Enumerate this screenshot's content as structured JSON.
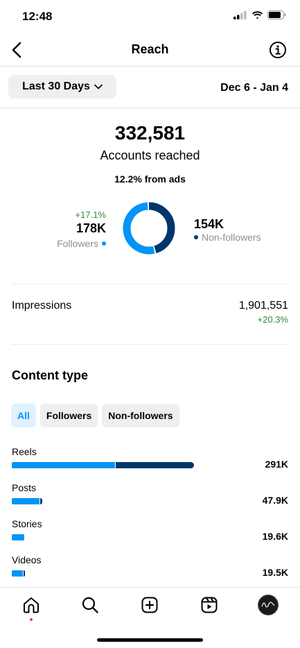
{
  "status_bar": {
    "time": "12:48"
  },
  "header": {
    "title": "Reach"
  },
  "filter": {
    "range_label": "Last 30 Days",
    "date_range": "Dec 6 - Jan 4"
  },
  "summary": {
    "total": "332,581",
    "total_label": "Accounts reached",
    "ads_note": "12.2% from ads",
    "followers": {
      "change": "+17.1%",
      "value": "178K",
      "label": "Followers",
      "share": 0.536
    },
    "non_followers": {
      "value": "154K",
      "label": "Non-followers",
      "share": 0.464
    }
  },
  "impressions": {
    "label": "Impressions",
    "value": "1,901,551",
    "change": "+20.3%"
  },
  "content_type": {
    "title": "Content type",
    "tabs": [
      {
        "label": "All",
        "active": true
      },
      {
        "label": "Followers",
        "active": false
      },
      {
        "label": "Non-followers",
        "active": false
      }
    ],
    "items": [
      {
        "label": "Reels",
        "value": "291K",
        "followers": 165,
        "non_followers": 126
      },
      {
        "label": "Posts",
        "value": "47.9K",
        "followers": 44,
        "non_followers": 3.9
      },
      {
        "label": "Stories",
        "value": "19.6K",
        "followers": 19.6,
        "non_followers": 0
      },
      {
        "label": "Videos",
        "value": "19.5K",
        "followers": 18.0,
        "non_followers": 1.5
      }
    ]
  },
  "colors": {
    "followers": "#0095f6",
    "non_followers": "#00376b",
    "positive": "#2d8a3e",
    "notification_dot": "#ff3040"
  },
  "tab_bar": {
    "icons": [
      "home-icon",
      "search-icon",
      "create-icon",
      "reels-icon",
      "profile-avatar"
    ]
  }
}
